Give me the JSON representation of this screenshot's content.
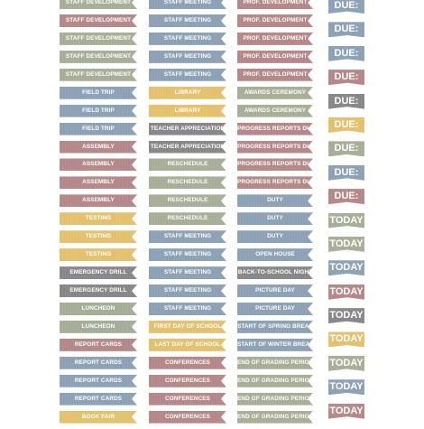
{
  "colors": {
    "sage": "#a7ad94",
    "blue": "#8ba0b5",
    "rose": "#b58687",
    "yellow": "#e5c06b",
    "gray": "#868686",
    "green": "#a3ad95"
  },
  "columns": [
    {
      "id": "col-a",
      "items": [
        {
          "text": "STAFF DEVELOPMENT",
          "color": "sage"
        },
        {
          "text": "STAFF DEVELOPMENT",
          "color": "rose"
        },
        {
          "text": "STAFF DEVELOPMENT",
          "color": "sage"
        },
        {
          "text": "STAFF DEVELOPMENT",
          "color": "sage"
        },
        {
          "text": "STAFF DEVELOPMENT",
          "color": "sage"
        },
        {
          "text": "FIELD TRIP",
          "color": "blue"
        },
        {
          "text": "FIELD TRIP",
          "color": "blue"
        },
        {
          "text": "FIELD TRIP",
          "color": "blue"
        },
        {
          "text": "ASSEMBLY",
          "color": "rose"
        },
        {
          "text": "ASSEMBLY",
          "color": "rose"
        },
        {
          "text": "ASSEMBLY",
          "color": "rose"
        },
        {
          "text": "ASSEMBLY",
          "color": "rose"
        },
        {
          "text": "TESTING",
          "color": "yellow"
        },
        {
          "text": "TESTING",
          "color": "yellow"
        },
        {
          "text": "TESTING",
          "color": "yellow"
        },
        {
          "text": "EMERGENCY DRILL",
          "color": "gray"
        },
        {
          "text": "EMERGENCY DRILL",
          "color": "gray"
        },
        {
          "text": "LUNCHEON",
          "color": "green"
        },
        {
          "text": "LUNCHEON",
          "color": "green"
        },
        {
          "text": "REPORT CARDS",
          "color": "rose"
        },
        {
          "text": "REPORT CARDS",
          "color": "blue"
        },
        {
          "text": "REPORT CARDS",
          "color": "blue"
        },
        {
          "text": "REPORT CARDS",
          "color": "blue"
        },
        {
          "text": "BOOK FAIR",
          "color": "yellow"
        }
      ]
    },
    {
      "id": "col-b",
      "items": [
        {
          "text": "STAFF MEETING",
          "color": "blue"
        },
        {
          "text": "STAFF MEETING",
          "color": "blue"
        },
        {
          "text": "STAFF MEETING",
          "color": "blue"
        },
        {
          "text": "STAFF MEETING",
          "color": "blue"
        },
        {
          "text": "STAFF MEETING",
          "color": "blue"
        },
        {
          "text": "LIBRARY",
          "color": "yellow"
        },
        {
          "text": "LIBRARY",
          "color": "yellow"
        },
        {
          "text": "TEACHER APPRECIATION",
          "color": "gray"
        },
        {
          "text": "TEACHER APPRECIATION",
          "color": "gray"
        },
        {
          "text": "RESCHEDULE",
          "color": "sage"
        },
        {
          "text": "RESCHEDULE",
          "color": "sage"
        },
        {
          "text": "RESCHEDULE",
          "color": "sage"
        },
        {
          "text": "RESCHEDULE",
          "color": "sage"
        },
        {
          "text": "STAFF MEETING",
          "color": "blue"
        },
        {
          "text": "STAFF MEETING",
          "color": "blue"
        },
        {
          "text": "STAFF MEETING",
          "color": "blue"
        },
        {
          "text": "STAFF MEETING",
          "color": "blue"
        },
        {
          "text": "STAFF MEETING",
          "color": "blue"
        },
        {
          "text": "FIRST DAY OF SCHOOL",
          "color": "yellow"
        },
        {
          "text": "LAST DAY OF SCHOOL",
          "color": "yellow"
        },
        {
          "text": "CONFERENCES",
          "color": "rose"
        },
        {
          "text": "CONFERENCES",
          "color": "rose"
        },
        {
          "text": "CONFERENCES",
          "color": "rose"
        },
        {
          "text": "CONFERENCES",
          "color": "rose"
        }
      ]
    },
    {
      "id": "col-c",
      "items": [
        {
          "text": "PROF. DEVELOPMENT",
          "color": "rose"
        },
        {
          "text": "PROF. DEVELOPMENT",
          "color": "rose"
        },
        {
          "text": "PROF. DEVELOPMENT",
          "color": "rose"
        },
        {
          "text": "PROF. DEVELOPMENT",
          "color": "rose"
        },
        {
          "text": "PROF. DEVELOPMENT",
          "color": "rose"
        },
        {
          "text": "AWARDS CEREMONY",
          "color": "sage"
        },
        {
          "text": "AWARDS CEREMONY",
          "color": "sage"
        },
        {
          "text": "PROGRESS REPORTS DUE",
          "color": "rose"
        },
        {
          "text": "PROGRESS REPORTS DUE",
          "color": "rose"
        },
        {
          "text": "PROGRESS REPORTS DUE",
          "color": "rose"
        },
        {
          "text": "PROGRESS REPORTS DUE",
          "color": "rose"
        },
        {
          "text": "DUTY",
          "color": "blue"
        },
        {
          "text": "DUTY",
          "color": "blue"
        },
        {
          "text": "DUTY",
          "color": "blue"
        },
        {
          "text": "OPEN HOUSE",
          "color": "blue"
        },
        {
          "text": "BACK-TO-SCHOOL NIGHT",
          "color": "gray"
        },
        {
          "text": "PICTURE DAY",
          "color": "blue"
        },
        {
          "text": "PICTURE DAY",
          "color": "blue"
        },
        {
          "text": "START OF SPRING BREAK",
          "color": "blue"
        },
        {
          "text": "START OF WINTER BREAK",
          "color": "blue"
        },
        {
          "text": "END OF GRADING PERIOD",
          "color": "sage"
        },
        {
          "text": "END OF GRADING PERIOD",
          "color": "sage"
        },
        {
          "text": "END OF GRADING PERIOD",
          "color": "sage"
        },
        {
          "text": "END OF GRADING PERIOD",
          "color": "sage"
        }
      ]
    },
    {
      "id": "col-d",
      "items": [
        {
          "text": "DUE:",
          "color": "blue"
        },
        {
          "text": "DUE:",
          "color": "blue"
        },
        {
          "text": "DUE:",
          "color": "blue"
        },
        {
          "text": "DUE:",
          "color": "rose"
        },
        {
          "text": "DUE:",
          "color": "gray"
        },
        {
          "text": "DUE:",
          "color": "yellow"
        },
        {
          "text": "DUE:",
          "color": "sage"
        },
        {
          "text": "DUE:",
          "color": "blue"
        },
        {
          "text": "DUE:",
          "color": "rose"
        },
        {
          "text": "TODAY",
          "color": "sage"
        },
        {
          "text": "TODAY",
          "color": "sage"
        },
        {
          "text": "TODAY",
          "color": "blue"
        },
        {
          "text": "TODAY",
          "color": "rose"
        },
        {
          "text": "TODAY",
          "color": "gray"
        },
        {
          "text": "TODAY",
          "color": "yellow"
        },
        {
          "text": "TODAY",
          "color": "sage"
        },
        {
          "text": "TODAY",
          "color": "blue"
        },
        {
          "text": "TODAY",
          "color": "rose"
        }
      ]
    }
  ]
}
